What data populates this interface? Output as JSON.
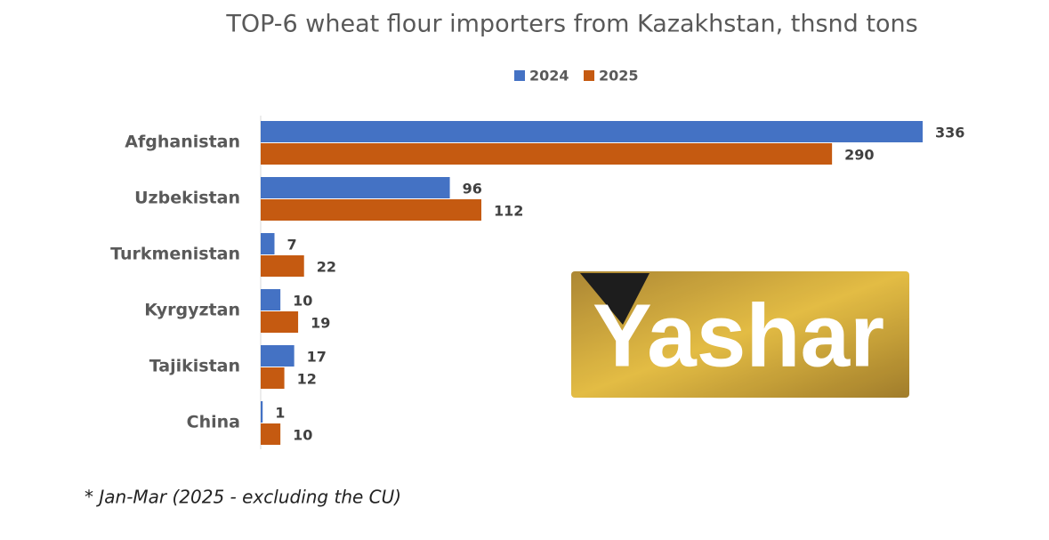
{
  "chart_data": {
    "type": "bar",
    "orientation": "horizontal",
    "title": "TOP-6 wheat flour importers from Kazakhstan, thsnd tons",
    "categories": [
      "Afghanistan",
      "Uzbekistan",
      "Turkmenistan",
      "Kyrgyztan",
      "Tajikistan",
      "China"
    ],
    "series": [
      {
        "name": "2024",
        "color": "#4472c4",
        "values": [
          336,
          96,
          7,
          10,
          17,
          1
        ]
      },
      {
        "name": "2025",
        "color": "#c55a11",
        "values": [
          290,
          112,
          22,
          19,
          12,
          10
        ]
      }
    ],
    "legend": "top",
    "footnote": "*  Jan-Mar (2025 - excluding the CU)",
    "watermark": "Yashar"
  }
}
